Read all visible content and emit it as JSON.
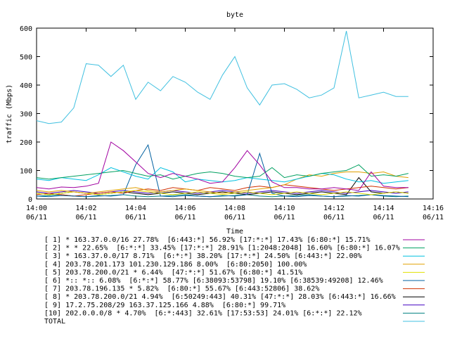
{
  "chart_data": {
    "type": "line",
    "title": "byte",
    "xlabel": "Time",
    "ylabel": "traffic (Mbps)",
    "ylim": [
      0,
      600
    ],
    "yticks": [
      0,
      100,
      200,
      300,
      400,
      500,
      600
    ],
    "x_minutes": [
      0,
      30,
      60,
      90,
      120,
      150,
      180,
      210,
      240,
      270,
      300,
      330,
      360,
      390,
      420,
      450,
      480,
      510,
      540,
      570,
      600,
      630,
      660,
      690,
      720,
      750,
      780,
      810,
      840,
      870,
      900
    ],
    "xlim_minutes": [
      0,
      960
    ],
    "xticks": [
      {
        "minute": 0,
        "time": "14:00",
        "date": "06/11"
      },
      {
        "minute": 120,
        "time": "14:02",
        "date": "06/11"
      },
      {
        "minute": 240,
        "time": "14:04",
        "date": "06/11"
      },
      {
        "minute": 360,
        "time": "14:06",
        "date": "06/11"
      },
      {
        "minute": 480,
        "time": "14:08",
        "date": "06/11"
      },
      {
        "minute": 600,
        "time": "14:10",
        "date": "06/11"
      },
      {
        "minute": 720,
        "time": "14:12",
        "date": "06/11"
      },
      {
        "minute": 840,
        "time": "14:14",
        "date": "06/11"
      },
      {
        "minute": 960,
        "time": "14:16",
        "date": "06/11"
      }
    ],
    "grid": false,
    "legend_position": "bottom",
    "series": [
      {
        "name": "[ 1] * 163.37.0.0/16 27.78%  [6:443:*] 56.92% [17:*:*] 17.43% [6:80:*] 15.71%",
        "color": "#a000a0",
        "values": [
          40,
          35,
          42,
          40,
          45,
          55,
          200,
          170,
          130,
          90,
          75,
          90,
          80,
          70,
          55,
          60,
          110,
          170,
          120,
          60,
          40,
          40,
          35,
          35,
          40,
          35,
          30,
          95,
          45,
          40,
          40
        ]
      },
      {
        "name": "[ 2] * * 22.65%  [6:*:*] 33.45% [17:*:*] 28.91% [1:2048:2048] 16.60% [6:80:*] 16.07%",
        "color": "#00a060",
        "values": [
          75,
          70,
          75,
          80,
          85,
          90,
          95,
          100,
          90,
          80,
          85,
          70,
          80,
          90,
          95,
          90,
          80,
          75,
          80,
          110,
          75,
          85,
          80,
          90,
          95,
          100,
          120,
          80,
          85,
          80,
          90
        ]
      },
      {
        "name": "[ 3] * 163.37.0.0/17 8.71%  [6:*:*] 38.20% [17:*:*] 24.50% [6:443:*] 22.00%",
        "color": "#00c0e0",
        "values": [
          70,
          65,
          75,
          70,
          65,
          85,
          110,
          95,
          80,
          70,
          110,
          95,
          60,
          70,
          65,
          60,
          65,
          75,
          70,
          65,
          60,
          70,
          80,
          90,
          85,
          70,
          60,
          65,
          55,
          60,
          65
        ]
      },
      {
        "name": "[ 4] 203.78.201.173 101.230.129.186 8.00%  [6:80:2050] 100.00%",
        "color": "#e0a000",
        "values": [
          30,
          25,
          30,
          25,
          20,
          25,
          30,
          35,
          40,
          30,
          25,
          30,
          35,
          30,
          25,
          20,
          25,
          30,
          35,
          40,
          50,
          70,
          85,
          80,
          90,
          95,
          95,
          90,
          95,
          80,
          75
        ]
      },
      {
        "name": "[ 5] 203.78.200.0/21 * 6.44%  [47:*:*] 51.67% [6:80:*] 41.51%",
        "color": "#e0e000",
        "values": [
          20,
          15,
          20,
          25,
          20,
          15,
          20,
          25,
          30,
          25,
          20,
          15,
          20,
          25,
          20,
          15,
          20,
          25,
          20,
          15,
          20,
          25,
          20,
          15,
          20,
          25,
          20,
          15,
          20,
          25,
          20
        ]
      },
      {
        "name": "[ 6] *:: *:: 6.08%  [6:*:*] 58.77% [6:38093:53798] 19.10% [6:38539:49208] 12.46%",
        "color": "#0060a0",
        "values": [
          10,
          8,
          12,
          10,
          8,
          12,
          10,
          15,
          120,
          190,
          10,
          8,
          12,
          10,
          8,
          12,
          10,
          15,
          160,
          20,
          10,
          8,
          12,
          10,
          8,
          12,
          10,
          15,
          12,
          10,
          8
        ]
      },
      {
        "name": "[ 7] 203.78.196.135 * 5.82%  [6:80:*] 55.67% [6:443:52806] 38.62%",
        "color": "#d03000",
        "values": [
          15,
          20,
          15,
          10,
          15,
          20,
          25,
          20,
          30,
          35,
          30,
          40,
          35,
          30,
          40,
          35,
          30,
          40,
          45,
          40,
          50,
          45,
          40,
          35,
          30,
          35,
          40,
          45,
          40,
          35,
          40
        ]
      },
      {
        "name": "[ 8] * 203.78.200.0/21 4.94%  [6:50249:443] 40.31% [47:*:*] 28.03% [6:443:*] 16.66%",
        "color": "#000000",
        "values": [
          20,
          15,
          20,
          25,
          20,
          15,
          20,
          25,
          20,
          15,
          20,
          25,
          20,
          15,
          20,
          25,
          20,
          15,
          20,
          25,
          20,
          15,
          20,
          25,
          20,
          15,
          75,
          25,
          20,
          25,
          20
        ]
      },
      {
        "name": "[ 9] 17.2.75.208/29 163.37.125.166 4.88%  [6:80:*] 99.71%",
        "color": "#4000c0",
        "values": [
          25,
          20,
          25,
          30,
          25,
          20,
          25,
          30,
          25,
          20,
          25,
          30,
          25,
          20,
          25,
          30,
          25,
          20,
          25,
          30,
          25,
          20,
          25,
          30,
          25,
          20,
          25,
          30,
          25,
          20,
          25
        ]
      },
      {
        "name": "[10] 202.0.0.0/8 * 4.70%  [6:*:443] 32.61% [17:53:53] 24.01% [6:*:*] 22.12%",
        "color": "#008080",
        "values": [
          10,
          12,
          15,
          10,
          8,
          10,
          12,
          15,
          10,
          8,
          10,
          12,
          15,
          10,
          8,
          10,
          12,
          15,
          10,
          8,
          10,
          12,
          15,
          10,
          8,
          10,
          12,
          15,
          10,
          8,
          10
        ]
      },
      {
        "name": "TOTAL",
        "color": "#40c0e0",
        "values": [
          275,
          265,
          270,
          320,
          475,
          470,
          430,
          470,
          350,
          410,
          380,
          430,
          410,
          375,
          350,
          435,
          500,
          390,
          330,
          400,
          405,
          385,
          355,
          365,
          390,
          590,
          355,
          365,
          375,
          360,
          360
        ]
      }
    ]
  }
}
